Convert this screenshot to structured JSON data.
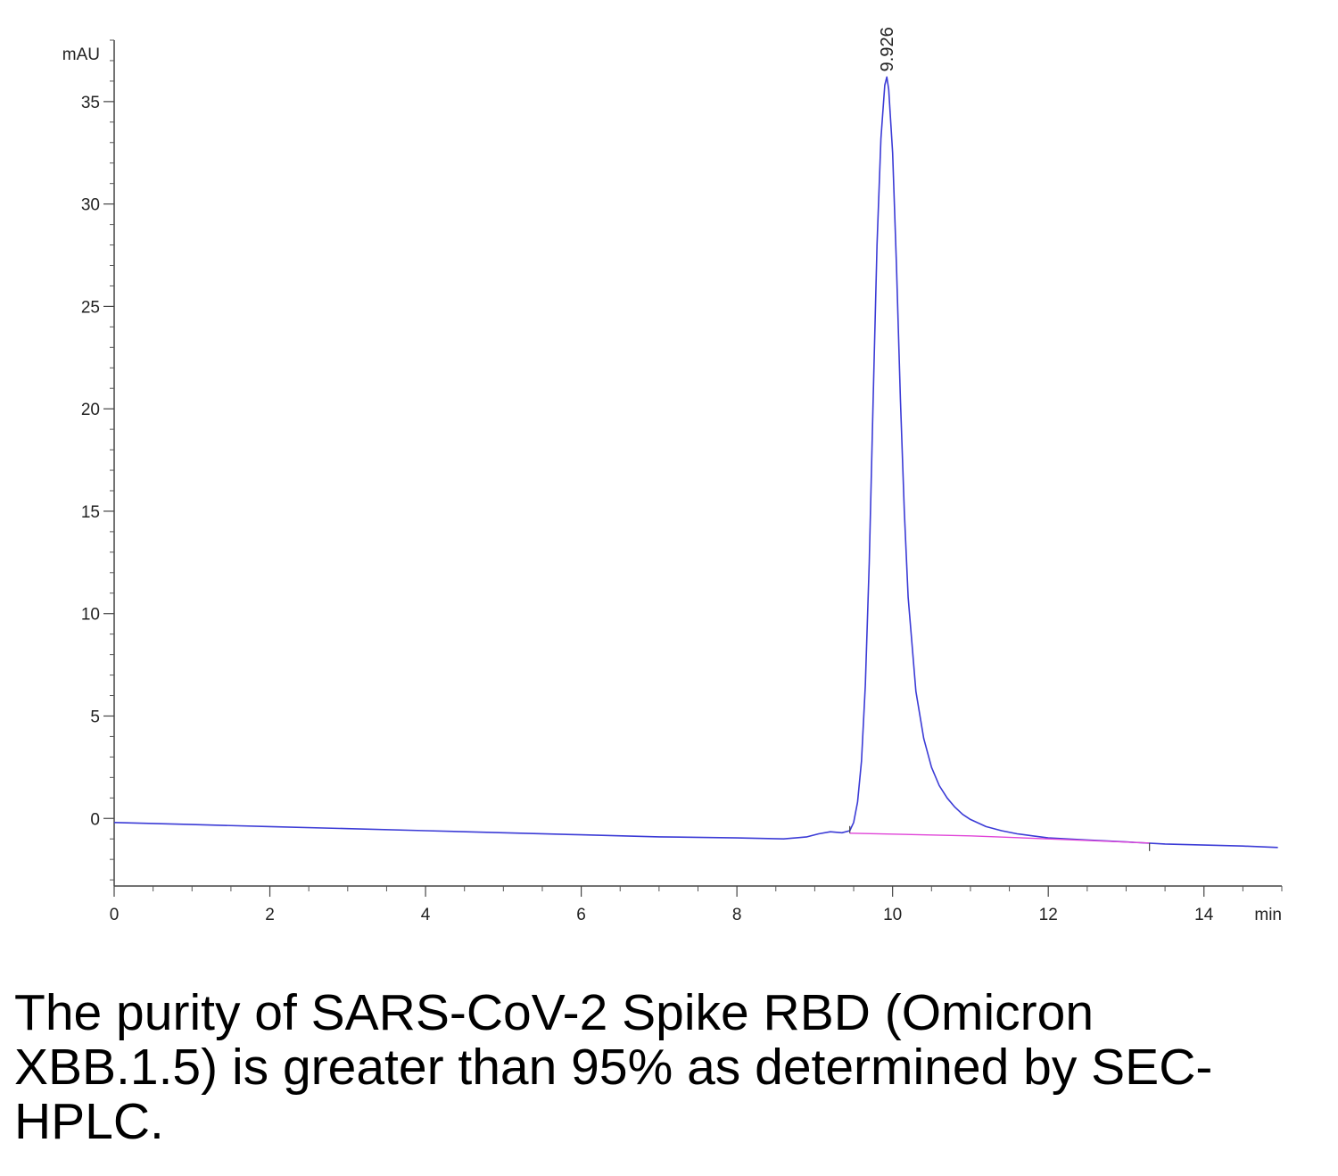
{
  "chart_data": {
    "type": "line",
    "title": "",
    "xlabel": "min",
    "ylabel": "mAU",
    "xlim": [
      0,
      15
    ],
    "ylim": [
      -3.3,
      38
    ],
    "x_ticks": [
      0,
      2,
      4,
      6,
      8,
      10,
      12,
      14
    ],
    "y_ticks": [
      0,
      5,
      10,
      15,
      20,
      25,
      30,
      35
    ],
    "grid": false,
    "series": [
      {
        "color": "#3b3bd6",
        "x": [
          0,
          1,
          2,
          3,
          4,
          5,
          6,
          7,
          8,
          8.6,
          8.9,
          9.05,
          9.2,
          9.35,
          9.45,
          9.5,
          9.55,
          9.6,
          9.65,
          9.7,
          9.75,
          9.8,
          9.85,
          9.9,
          9.926,
          9.95,
          10.0,
          10.05,
          10.1,
          10.15,
          10.2,
          10.3,
          10.4,
          10.5,
          10.6,
          10.7,
          10.8,
          10.9,
          11.0,
          11.2,
          11.4,
          11.6,
          11.8,
          12.0,
          12.5,
          13.0,
          13.5,
          14.0,
          14.5,
          14.95
        ],
        "y": [
          -0.2,
          -0.3,
          -0.4,
          -0.5,
          -0.6,
          -0.7,
          -0.8,
          -0.9,
          -0.95,
          -1.0,
          -0.9,
          -0.75,
          -0.65,
          -0.7,
          -0.6,
          -0.2,
          0.8,
          2.8,
          6.5,
          12.5,
          20.5,
          28.0,
          33.2,
          35.8,
          36.2,
          35.6,
          32.5,
          27.0,
          20.5,
          15.0,
          10.8,
          6.2,
          3.9,
          2.5,
          1.6,
          1.0,
          0.55,
          0.2,
          -0.05,
          -0.4,
          -0.6,
          -0.75,
          -0.85,
          -0.95,
          -1.05,
          -1.15,
          -1.25,
          -1.3,
          -1.35,
          -1.42
        ]
      },
      {
        "color": "#e044d8",
        "x": [
          9.45,
          11.0,
          12.0,
          13.3
        ],
        "y": [
          -0.72,
          -0.85,
          -1.0,
          -1.2
        ]
      }
    ],
    "annotations": [
      {
        "text": "9.926",
        "x": 9.926,
        "y": 36.2
      }
    ]
  },
  "caption": "The purity of SARS-CoV-2 Spike RBD (Omicron XBB.1.5) is greater than 95% as determined by SEC-HPLC."
}
